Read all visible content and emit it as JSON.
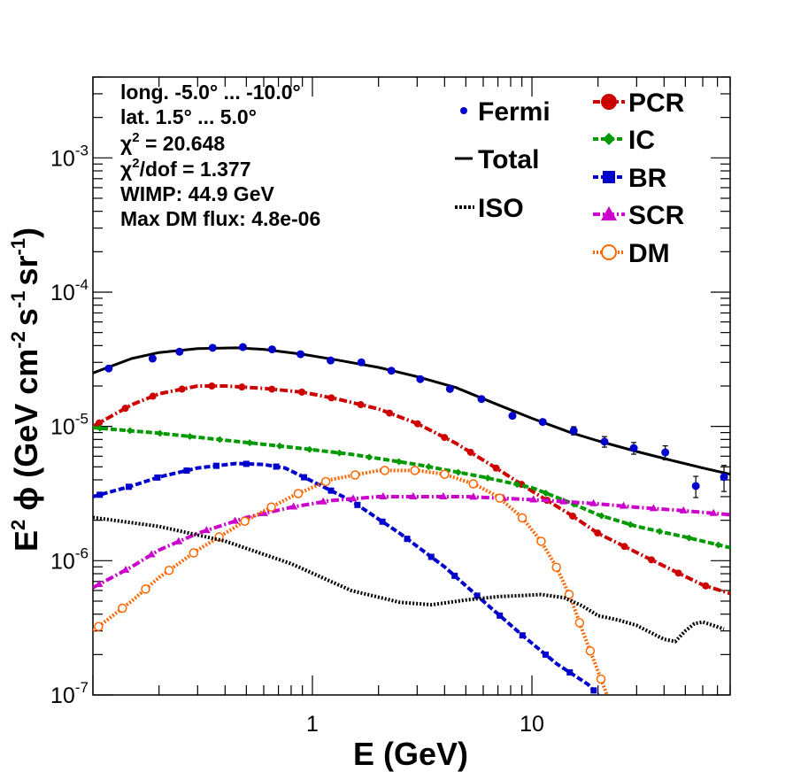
{
  "chart_data": {
    "type": "line",
    "xlabel": "E (GeV)",
    "ylabel_parts": {
      "prefix": "E",
      "prefix_sup": "2",
      "phi": "ϕ",
      "unit_open": "(GeV cm",
      "cm_sup": "-2",
      "s": "s",
      "s_sup": "-1",
      "sr": "sr",
      "sr_sup": "-1",
      "close": ")"
    },
    "x_scale": "log",
    "y_scale": "log",
    "xlim": [
      0.1,
      80
    ],
    "ylim": [
      1e-07,
      0.004
    ],
    "x_ticks": [
      {
        "value": 1,
        "label": "1"
      },
      {
        "value": 10,
        "label": "10"
      }
    ],
    "y_ticks": [
      {
        "value": 1e-07,
        "base": "10",
        "exp": "-7"
      },
      {
        "value": 1e-06,
        "base": "10",
        "exp": "-6"
      },
      {
        "value": 1e-05,
        "base": "10",
        "exp": "-5"
      },
      {
        "value": 0.0001,
        "base": "10",
        "exp": "-4"
      },
      {
        "value": 0.001,
        "base": "10",
        "exp": "-3"
      }
    ],
    "info": {
      "long": "long. -5.0° ... -10.0°",
      "lat": "lat. 1.5° ... 5.0°",
      "chi2_sym": "χ",
      "chi2_sup": "2",
      "chi2_val": " = 20.648",
      "chi2dof_sym": "χ",
      "chi2dof_sup": "2",
      "chi2dof_val": "/dof = 1.377",
      "wimp": "WIMP: 44.9 GeV",
      "maxdm": "Max DM flux: 4.8e-06"
    },
    "legend_left": [
      {
        "name": "Fermi",
        "style": "point",
        "color": "#0000cc"
      },
      {
        "name": "Total",
        "style": "line",
        "color": "#000000"
      },
      {
        "name": "ISO",
        "style": "dotted",
        "color": "#000000"
      }
    ],
    "legend_right": [
      {
        "name": "PCR",
        "marker": "circle",
        "color": "#cc0000"
      },
      {
        "name": "IC",
        "marker": "diamond",
        "color": "#009900"
      },
      {
        "name": "BR",
        "marker": "square",
        "color": "#0000cc"
      },
      {
        "name": "SCR",
        "marker": "triangle",
        "color": "#cc00cc"
      },
      {
        "name": "DM",
        "marker": "open-circle",
        "color": "#ff6600"
      }
    ],
    "fermi": {
      "color": "#0000cc",
      "x": [
        0.118,
        0.187,
        0.248,
        0.351,
        0.482,
        0.655,
        0.883,
        1.21,
        1.67,
        2.29,
        3.1,
        4.23,
        5.89,
        8.15,
        11.2,
        15.5,
        21.4,
        29.1,
        40.5,
        55.8,
        75.0
      ],
      "y": [
        2.7e-05,
        3.2e-05,
        3.6e-05,
        3.85e-05,
        3.9e-05,
        3.75e-05,
        3.45e-05,
        3.1e-05,
        3e-05,
        2.6e-05,
        2.25e-05,
        1.9e-05,
        1.6e-05,
        1.2e-05,
        1.08e-05,
        9.3e-06,
        7.7e-06,
        6.9e-06,
        6.4e-06,
        3.6e-06,
        4.2e-06
      ],
      "yerr": [
        0.03,
        0.02,
        0.02,
        0.02,
        0.02,
        0.02,
        0.02,
        0.02,
        0.02,
        0.02,
        0.03,
        0.03,
        0.04,
        0.05,
        0.06,
        0.07,
        0.09,
        0.1,
        0.12,
        0.18,
        0.22
      ]
    },
    "series": [
      {
        "name": "Total",
        "color": "#000000",
        "style": "solid",
        "marker": "none",
        "x": [
          0.1,
          0.15,
          0.2,
          0.3,
          0.45,
          0.6,
          0.9,
          1.3,
          2.0,
          3.0,
          4.5,
          7.0,
          10,
          15,
          20,
          30,
          45,
          60,
          80
        ],
        "y": [
          2.5e-05,
          3.2e-05,
          3.55e-05,
          3.8e-05,
          3.85e-05,
          3.75e-05,
          3.45e-05,
          3.12e-05,
          2.75e-05,
          2.35e-05,
          1.95e-05,
          1.45e-05,
          1.15e-05,
          9e-06,
          7.8e-06,
          6.5e-06,
          5.5e-06,
          4.9e-06,
          4.4e-06
        ]
      },
      {
        "name": "PCR",
        "color": "#cc0000",
        "style": "dashdot",
        "marker": "circle",
        "x": [
          0.1,
          0.15,
          0.2,
          0.3,
          0.4,
          0.6,
          0.9,
          1.3,
          2.0,
          3.0,
          4.5,
          7.0,
          10,
          15,
          20,
          30,
          45,
          60,
          80
        ],
        "y": [
          1e-05,
          1.45e-05,
          1.75e-05,
          2e-05,
          2e-05,
          1.92e-05,
          1.8e-05,
          1.6e-05,
          1.35e-05,
          1.05e-05,
          7.5e-06,
          4.8e-06,
          3.3e-06,
          2.2e-06,
          1.6e-06,
          1.15e-06,
          8.3e-07,
          6.6e-07,
          5.7e-07
        ]
      },
      {
        "name": "IC",
        "color": "#009900",
        "style": "dashed",
        "marker": "diamond",
        "x": [
          0.1,
          0.2,
          0.4,
          0.8,
          1.5,
          3.0,
          6.0,
          10,
          15,
          20,
          30,
          50,
          80
        ],
        "y": [
          9.8e-06,
          8.9e-06,
          7.9e-06,
          7e-06,
          6.2e-06,
          5.2e-06,
          4.2e-06,
          3.5e-06,
          2.7e-06,
          2.2e-06,
          1.8e-06,
          1.5e-06,
          1.25e-06
        ]
      },
      {
        "name": "BR",
        "color": "#0000cc",
        "style": "dashed",
        "marker": "square",
        "x": [
          0.1,
          0.15,
          0.2,
          0.3,
          0.45,
          0.6,
          0.75,
          1.0,
          1.5,
          2.5,
          4.0,
          6.0,
          9.0,
          13,
          18,
          20
        ],
        "y": [
          3e-06,
          3.6e-06,
          4.2e-06,
          4.9e-06,
          5.3e-06,
          5.2e-06,
          4.9e-06,
          3.9e-06,
          2.8e-06,
          1.6e-06,
          9e-07,
          5e-07,
          2.8e-07,
          1.7e-07,
          1.2e-07,
          1e-07
        ]
      },
      {
        "name": "SCR",
        "color": "#cc00cc",
        "style": "dashdot",
        "marker": "triangle",
        "x": [
          0.1,
          0.15,
          0.2,
          0.3,
          0.5,
          0.8,
          1.2,
          2.0,
          3.0,
          5.0,
          8.0,
          12,
          20,
          30,
          50,
          80
        ],
        "y": [
          6.3e-07,
          9e-07,
          1.2e-06,
          1.6e-06,
          2.1e-06,
          2.5e-06,
          2.8e-06,
          3e-06,
          3e-06,
          3e-06,
          2.9e-06,
          2.8e-06,
          2.65e-06,
          2.5e-06,
          2.35e-06,
          2.2e-06
        ]
      },
      {
        "name": "DM",
        "color": "#ff6600",
        "style": "dotted",
        "marker": "open-circle",
        "x": [
          0.1,
          0.15,
          0.2,
          0.3,
          0.5,
          0.8,
          1.2,
          2.0,
          3.0,
          4.0,
          5.5,
          7.0,
          9.0,
          11,
          13,
          15,
          17,
          20,
          22
        ],
        "y": [
          3e-07,
          5e-07,
          7.5e-07,
          1.2e-06,
          2e-06,
          3e-06,
          4e-06,
          4.7e-06,
          4.7e-06,
          4.4e-06,
          3.7e-06,
          3e-06,
          2.1e-06,
          1.4e-06,
          8.8e-07,
          5.3e-07,
          3e-07,
          1.5e-07,
          1e-07
        ]
      },
      {
        "name": "ISO",
        "color": "#000000",
        "style": "dotted",
        "marker": "none",
        "x": [
          0.1,
          0.2,
          0.4,
          0.8,
          1.5,
          2.5,
          3.5,
          5.0,
          7.0,
          9.0,
          11,
          14,
          17,
          20,
          25,
          30,
          35,
          40,
          45,
          50,
          55,
          60,
          75
        ],
        "y": [
          2.1e-06,
          1.8e-06,
          1.4e-06,
          9.5e-07,
          6e-07,
          4.9e-07,
          4.7e-07,
          5.1e-07,
          5.4e-07,
          5.5e-07,
          5.6e-07,
          5.3e-07,
          4.6e-07,
          3.9e-07,
          3.6e-07,
          3.3e-07,
          2.9e-07,
          2.6e-07,
          2.5e-07,
          3e-07,
          3.4e-07,
          3.5e-07,
          3.1e-07
        ]
      }
    ]
  }
}
